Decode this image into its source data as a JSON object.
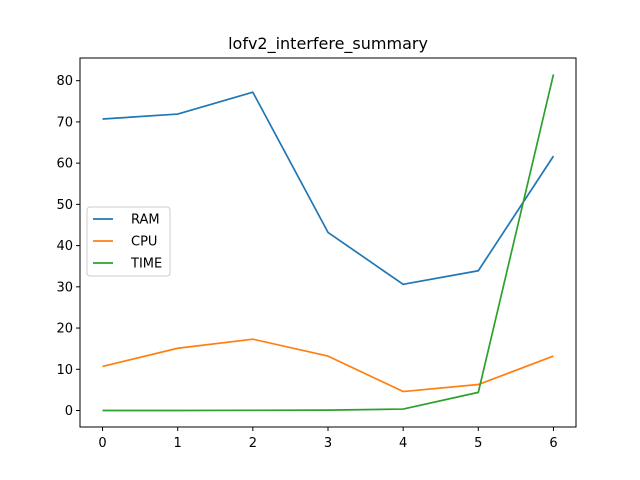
{
  "chart_data": {
    "type": "line",
    "title": "lofv2_interfere_summary",
    "xlabel": "",
    "ylabel": "",
    "x": [
      0,
      1,
      2,
      3,
      4,
      5,
      6
    ],
    "xlim": [
      -0.3,
      6.3
    ],
    "ylim": [
      -4.0,
      85.5
    ],
    "xticks": [
      "0",
      "1",
      "2",
      "3",
      "4",
      "5",
      "6"
    ],
    "yticks": [
      "0",
      "10",
      "20",
      "30",
      "40",
      "50",
      "60",
      "70",
      "80"
    ],
    "grid": false,
    "legend_position": "center-left",
    "series": [
      {
        "name": "RAM",
        "color": "#1f77b4",
        "values": [
          70.7,
          71.9,
          77.2,
          43.2,
          30.6,
          33.9,
          61.7
        ]
      },
      {
        "name": "CPU",
        "color": "#ff7f0e",
        "values": [
          10.7,
          15.1,
          17.3,
          13.2,
          4.6,
          6.3,
          13.2
        ]
      },
      {
        "name": "TIME",
        "color": "#2ca02c",
        "values": [
          0.0,
          0.0,
          0.05,
          0.1,
          0.35,
          4.4,
          81.5
        ]
      }
    ]
  }
}
